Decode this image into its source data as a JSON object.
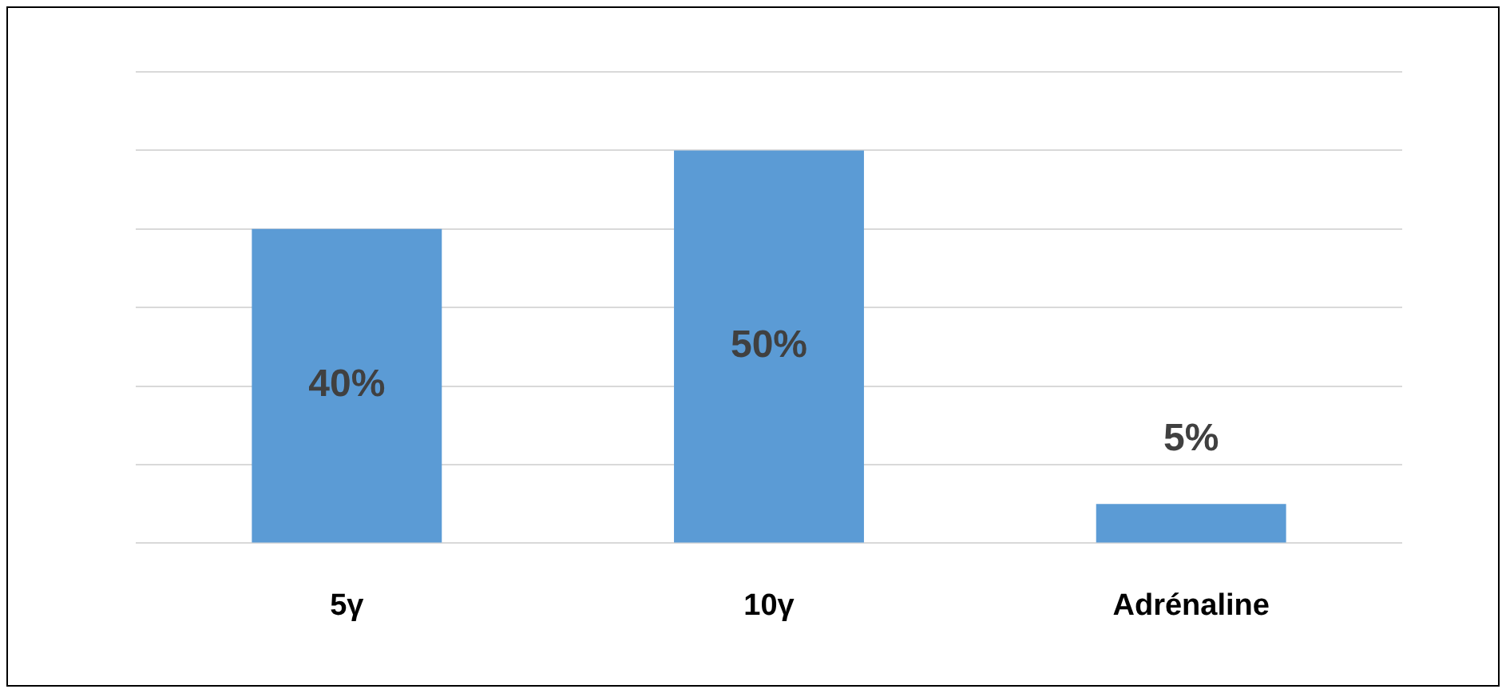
{
  "chart_data": {
    "type": "bar",
    "categories": [
      "5γ",
      "10γ",
      "Adrénaline"
    ],
    "values": [
      40,
      50,
      5
    ],
    "color": "#5b9bd5",
    "value_labels": [
      "40%",
      "50%",
      "5%"
    ],
    "ylim": [
      0,
      60
    ],
    "yticks": [
      {
        "value": 0,
        "label": null
      },
      {
        "value": 10,
        "label": null
      },
      {
        "value": 20,
        "label": null
      },
      {
        "value": 30,
        "label": null
      },
      {
        "value": 40,
        "label": null
      },
      {
        "value": 50,
        "label": null
      },
      {
        "value": 60,
        "label": null
      }
    ],
    "grid": "y",
    "tick_labels": "x"
  }
}
